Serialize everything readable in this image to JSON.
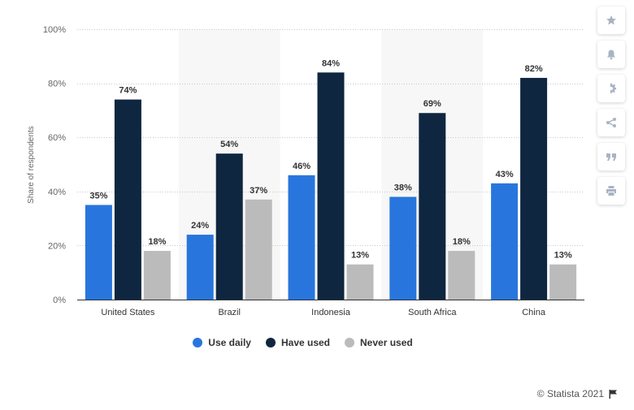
{
  "chart_data": {
    "type": "bar",
    "categories": [
      "United States",
      "Brazil",
      "Indonesia",
      "South Africa",
      "China"
    ],
    "series": [
      {
        "name": "Use daily",
        "values": [
          35,
          24,
          46,
          38,
          43
        ],
        "color": "#2876dd"
      },
      {
        "name": "Have used",
        "values": [
          74,
          54,
          84,
          69,
          82
        ],
        "color": "#0f2640"
      },
      {
        "name": "Never used",
        "values": [
          18,
          37,
          13,
          18,
          13
        ],
        "color": "#bbbbbb"
      }
    ],
    "ylabel": "Share of respondents",
    "ylim": [
      0,
      100
    ],
    "yticks": [
      0,
      20,
      40,
      60,
      80,
      100
    ],
    "ytick_labels": [
      "0%",
      "20%",
      "40%",
      "60%",
      "80%",
      "100%"
    ],
    "value_suffix": "%",
    "grid": true,
    "legend_position": "bottom"
  },
  "credit": {
    "text": "© Statista 2021",
    "icon": "flag-icon"
  },
  "toolbar": [
    "star-icon",
    "bell-icon",
    "gear-icon",
    "share-icon",
    "quote-icon",
    "print-icon"
  ]
}
